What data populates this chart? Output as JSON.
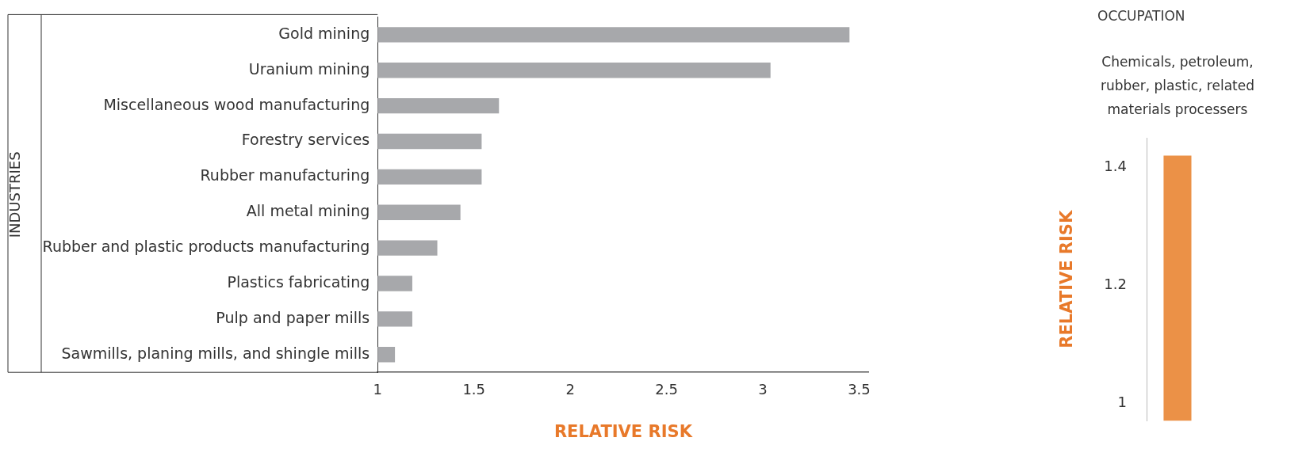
{
  "chart_data": [
    {
      "type": "bar",
      "orientation": "horizontal",
      "categories": [
        "Gold mining",
        "Uranium mining",
        "Miscellaneous wood manufacturing",
        "Forestry services",
        "Rubber manufacturing",
        "All metal mining",
        "Rubber and plastic products manufacturing",
        "Plastics fabricating",
        "Pulp and paper mills",
        "Sawmills, planing mills, and shingle mills"
      ],
      "values": [
        3.45,
        3.04,
        1.63,
        1.54,
        1.54,
        1.43,
        1.31,
        1.18,
        1.18,
        1.09
      ],
      "color": "#a7a8ab",
      "xlim": [
        1,
        3.55
      ],
      "xticks": [
        1,
        1.5,
        2,
        2.5,
        3,
        3.5
      ],
      "xlabel": "RELATIVE RISK",
      "ylabel": "INDUSTRIES"
    },
    {
      "type": "bar",
      "title": "OCCUPATION",
      "categories": [
        "Chemicals, petroleum, rubber, plastic, related materials processers"
      ],
      "values": [
        1.42
      ],
      "color": "#eb9147",
      "ylim": [
        0.97,
        1.45
      ],
      "yticks": [
        1,
        1.2,
        1.4
      ],
      "ylabel": "RELATIVE RISK"
    }
  ]
}
